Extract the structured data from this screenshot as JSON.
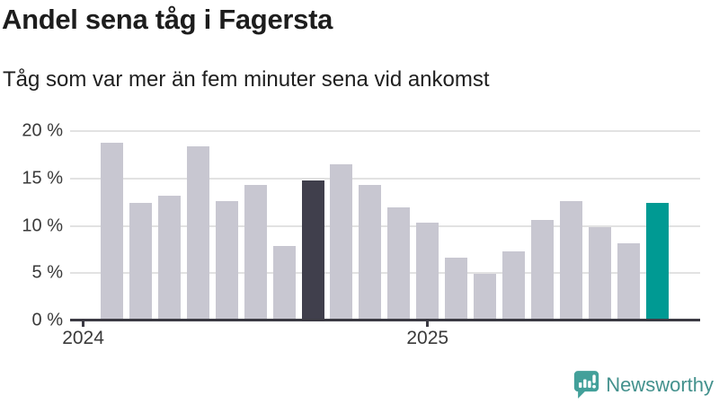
{
  "header": {
    "title": "Andel sena tåg i Fagersta",
    "subtitle": "Tåg som var mer än fem minuter sena vid ankomst"
  },
  "chart_data": {
    "type": "bar",
    "title": "Andel sena tåg i Fagersta",
    "subtitle": "Tåg som var mer än fem minuter sena vid ankomst",
    "unit": "percent share of trains more than five minutes late at arrival",
    "x": [
      "2024-02",
      "2024-03",
      "2024-04",
      "2024-05",
      "2024-06",
      "2024-07",
      "2024-08",
      "2024-09",
      "2024-10",
      "2024-11",
      "2024-12",
      "2025-01",
      "2025-02",
      "2025-03",
      "2025-04",
      "2025-05",
      "2025-06",
      "2025-07",
      "2025-08",
      "2025-09"
    ],
    "values": [
      18.8,
      12.4,
      13.2,
      18.4,
      12.6,
      14.3,
      7.9,
      14.8,
      16.5,
      14.3,
      11.9,
      10.3,
      6.6,
      4.9,
      7.3,
      10.6,
      12.6,
      9.9,
      8.2,
      12.4
    ],
    "ylim": [
      0,
      20
    ],
    "y_ticks": [
      {
        "value": 0,
        "label": "0 %"
      },
      {
        "value": 5,
        "label": "5 %"
      },
      {
        "value": 10,
        "label": "10 %"
      },
      {
        "value": 15,
        "label": "15 %"
      },
      {
        "value": 20,
        "label": "20 %"
      }
    ],
    "x_ticks": [
      {
        "label": "2024",
        "bar_index": -1
      },
      {
        "label": "2025",
        "bar_index": 11
      }
    ],
    "grid": "horizontal",
    "legend": "none",
    "colors": {
      "default": "#c8c7d1",
      "dark": "#403f4c",
      "teal": "#009a93"
    },
    "highlight": {
      "dark_index": 7,
      "teal_index": 19
    }
  },
  "footer": {
    "brand": "Newsworthy",
    "logo_icon": "newsworthy-speech-bubble-chart-icon",
    "brand_color": "#43918d"
  }
}
